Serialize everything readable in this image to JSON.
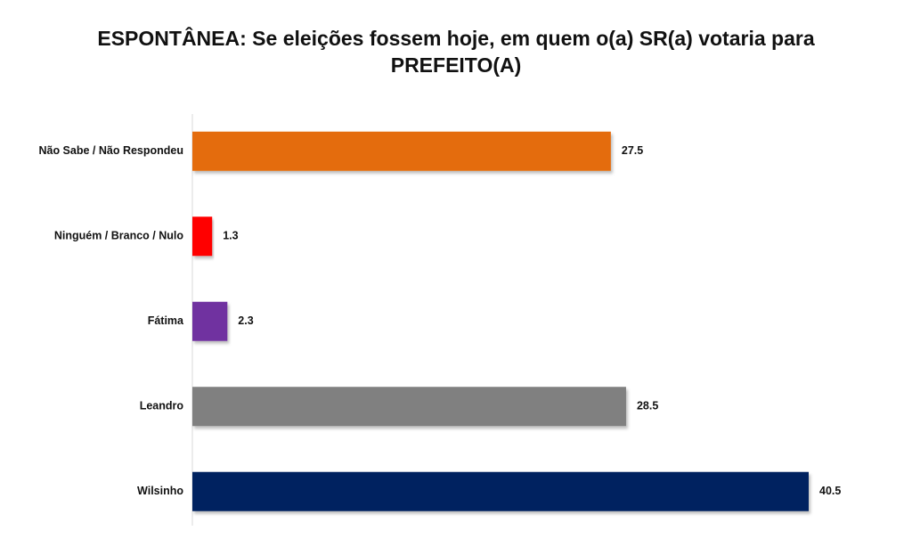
{
  "chart_data": {
    "type": "bar",
    "orientation": "horizontal",
    "title": "ESPONTÂNEA: Se eleições fossem hoje, em quem o(a) SR(a) votaria para PREFEITO(A)",
    "categories": [
      "Não Sabe / Não Respondeu",
      "Ninguém / Branco / Nulo",
      "Fátima",
      "Leandro",
      "Wilsinho"
    ],
    "values": [
      27.5,
      1.3,
      2.3,
      28.5,
      40.5
    ],
    "value_labels": [
      "27.5",
      "1.3",
      "2.3",
      "28.5",
      "40.5"
    ],
    "colors": [
      "#E46C0A",
      "#FF0000",
      "#7030A0",
      "#808080",
      "#002060"
    ],
    "xlim": [
      0,
      40.5
    ],
    "grid": false,
    "legend": "none"
  }
}
